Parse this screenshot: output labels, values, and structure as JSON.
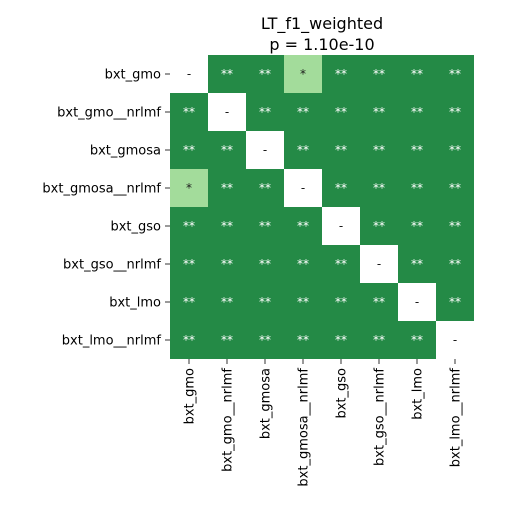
{
  "chart_data": {
    "type": "heatmap",
    "title": "LT_f1_weighted",
    "subtitle": "p = 1.10e-10",
    "row_labels": [
      "bxt_gmo",
      "bxt_gmo__nrlmf",
      "bxt_gmosa",
      "bxt_gmosa__nrlmf",
      "bxt_gso",
      "bxt_gso__nrlmf",
      "bxt_lmo",
      "bxt_lmo__nrlmf"
    ],
    "col_labels": [
      "bxt_gmo",
      "bxt_gmo__nrlmf",
      "bxt_gmosa",
      "bxt_gmosa__nrlmf",
      "bxt_gso",
      "bxt_gso__nrlmf",
      "bxt_lmo",
      "bxt_lmo__nrlmf"
    ],
    "cells": [
      [
        "-",
        "**",
        "**",
        "*",
        "**",
        "**",
        "**",
        "**"
      ],
      [
        "**",
        "-",
        "**",
        "**",
        "**",
        "**",
        "**",
        "**"
      ],
      [
        "**",
        "**",
        "-",
        "**",
        "**",
        "**",
        "**",
        "**"
      ],
      [
        "*",
        "**",
        "**",
        "-",
        "**",
        "**",
        "**",
        "**"
      ],
      [
        "**",
        "**",
        "**",
        "**",
        "-",
        "**",
        "**",
        "**"
      ],
      [
        "**",
        "**",
        "**",
        "**",
        "**",
        "-",
        "**",
        "**"
      ],
      [
        "**",
        "**",
        "**",
        "**",
        "**",
        "**",
        "-",
        "**"
      ],
      [
        "**",
        "**",
        "**",
        "**",
        "**",
        "**",
        "**",
        "-"
      ]
    ],
    "colors": {
      "**": "#248a46",
      "*": "#a3dc9b",
      "-": "#ffffff"
    },
    "text_colors": {
      "**": "#ffffff",
      "*": "#1a1a1a",
      "-": "#1a1a1a"
    }
  }
}
